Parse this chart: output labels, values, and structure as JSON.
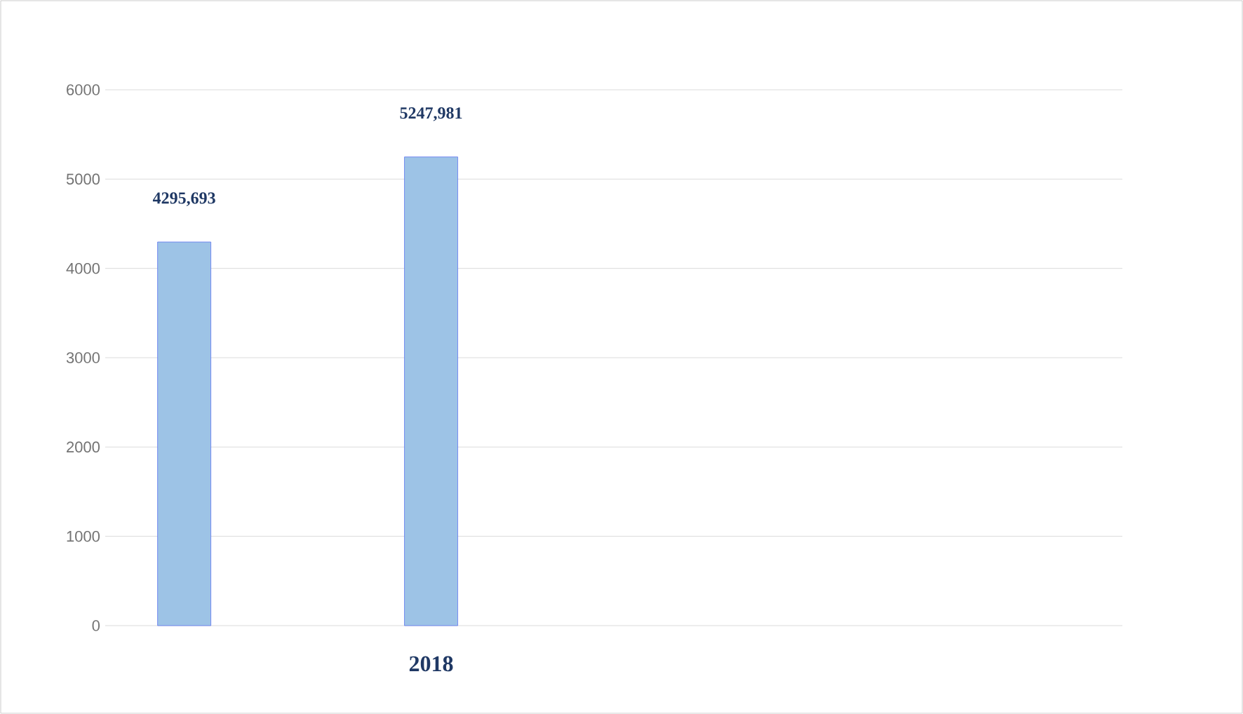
{
  "chart_data": {
    "type": "bar",
    "categories": [
      null,
      "2018",
      null,
      null
    ],
    "values": [
      4295.693,
      5247.981,
      null,
      null
    ],
    "value_labels": [
      "4295,693",
      "5247,981",
      null,
      null
    ],
    "color": "#9dc3e6",
    "ylim": [
      0,
      6000
    ],
    "yticks": [
      0,
      1000,
      2000,
      3000,
      4000,
      5000,
      6000
    ],
    "grid": "y"
  }
}
